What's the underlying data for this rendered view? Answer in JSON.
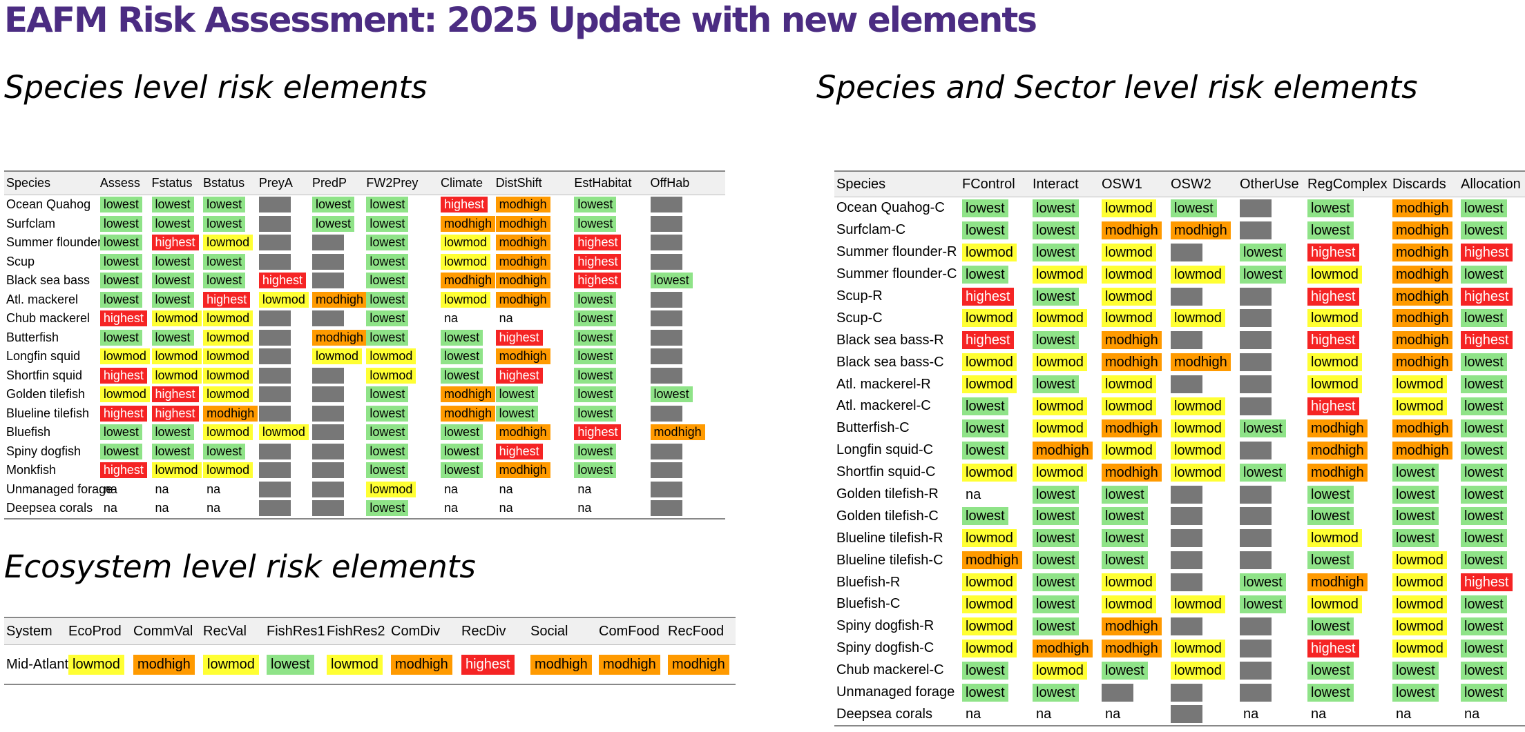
{
  "title": "EAFM Risk Assessment: 2025 Update with new elements",
  "species": {
    "heading": "Species level risk elements",
    "columns": [
      "Species",
      "Assess",
      "Fstatus",
      "Bstatus",
      "PreyA",
      "PredP",
      "FW2Prey",
      "Climate",
      "DistShift",
      "EstHabitat",
      "OffHab"
    ],
    "rows": [
      [
        "Ocean Quahog",
        "lowest",
        "lowest",
        "lowest",
        "#",
        "lowest",
        "lowest",
        "highest",
        "modhigh",
        "lowest",
        "#"
      ],
      [
        "Surfclam",
        "lowest",
        "lowest",
        "lowest",
        "#",
        "lowest",
        "lowest",
        "modhigh",
        "modhigh",
        "lowest",
        "#"
      ],
      [
        "Summer flounder",
        "lowest",
        "highest",
        "lowmod",
        "#",
        "#",
        "lowest",
        "lowmod",
        "modhigh",
        "highest",
        "#"
      ],
      [
        "Scup",
        "lowest",
        "lowest",
        "lowest",
        "#",
        "#",
        "lowest",
        "lowmod",
        "modhigh",
        "highest",
        "#"
      ],
      [
        "Black sea bass",
        "lowest",
        "lowest",
        "lowest",
        "highest",
        "#",
        "lowest",
        "modhigh",
        "modhigh",
        "highest",
        "lowest"
      ],
      [
        "Atl. mackerel",
        "lowest",
        "lowest",
        "highest",
        "lowmod",
        "modhigh",
        "lowest",
        "lowmod",
        "modhigh",
        "lowest",
        "#"
      ],
      [
        "Chub mackerel",
        "highest",
        "lowmod",
        "lowmod",
        "#",
        "#",
        "lowest",
        "na",
        "na",
        "lowest",
        "#"
      ],
      [
        "Butterfish",
        "lowest",
        "lowest",
        "lowmod",
        "#",
        "modhigh",
        "lowest",
        "lowest",
        "highest",
        "lowest",
        "#"
      ],
      [
        "Longfin squid",
        "lowmod",
        "lowmod",
        "lowmod",
        "#",
        "lowmod",
        "lowmod",
        "lowest",
        "modhigh",
        "lowest",
        "#"
      ],
      [
        "Shortfin squid",
        "highest",
        "lowmod",
        "lowmod",
        "#",
        "#",
        "lowmod",
        "lowest",
        "highest",
        "lowest",
        "#"
      ],
      [
        "Golden tilefish",
        "lowmod",
        "highest",
        "lowmod",
        "#",
        "#",
        "lowest",
        "modhigh",
        "lowest",
        "lowest",
        "lowest"
      ],
      [
        "Blueline tilefish",
        "highest",
        "highest",
        "modhigh",
        "#",
        "#",
        "lowest",
        "modhigh",
        "lowest",
        "lowest",
        "#"
      ],
      [
        "Bluefish",
        "lowest",
        "lowest",
        "lowmod",
        "lowmod",
        "#",
        "lowest",
        "lowest",
        "modhigh",
        "highest",
        "modhigh"
      ],
      [
        "Spiny dogfish",
        "lowest",
        "lowest",
        "lowest",
        "#",
        "#",
        "lowest",
        "lowest",
        "highest",
        "lowest",
        "#"
      ],
      [
        "Monkfish",
        "highest",
        "lowmod",
        "lowmod",
        "#",
        "#",
        "lowest",
        "lowest",
        "modhigh",
        "lowest",
        "#"
      ],
      [
        "Unmanaged forage",
        "na",
        "na",
        "na",
        "#",
        "#",
        "lowmod",
        "na",
        "na",
        "na",
        "#"
      ],
      [
        "Deepsea corals",
        "na",
        "na",
        "na",
        "#",
        "#",
        "lowest",
        "na",
        "na",
        "na",
        "#"
      ]
    ]
  },
  "sector": {
    "heading": "Species and Sector level risk elements",
    "columns": [
      "Species",
      "FControl",
      "Interact",
      "OSW1",
      "OSW2",
      "OtherUse",
      "RegComplex",
      "Discards",
      "Allocation"
    ],
    "rows": [
      [
        "Ocean Quahog-C",
        "lowest",
        "lowest",
        "lowmod",
        "lowest",
        "#",
        "lowest",
        "modhigh",
        "lowest"
      ],
      [
        "Surfclam-C",
        "lowest",
        "lowest",
        "modhigh",
        "modhigh",
        "#",
        "lowest",
        "modhigh",
        "lowest"
      ],
      [
        "Summer flounder-R",
        "lowmod",
        "lowest",
        "lowmod",
        "#",
        "lowest",
        "highest",
        "modhigh",
        "highest"
      ],
      [
        "Summer flounder-C",
        "lowest",
        "lowmod",
        "lowmod",
        "lowmod",
        "lowest",
        "lowmod",
        "modhigh",
        "lowest"
      ],
      [
        "Scup-R",
        "highest",
        "lowest",
        "lowmod",
        "#",
        "#",
        "highest",
        "modhigh",
        "highest"
      ],
      [
        "Scup-C",
        "lowmod",
        "lowmod",
        "lowmod",
        "lowmod",
        "#",
        "lowmod",
        "modhigh",
        "lowest"
      ],
      [
        "Black sea bass-R",
        "highest",
        "lowest",
        "modhigh",
        "#",
        "#",
        "highest",
        "modhigh",
        "highest"
      ],
      [
        "Black sea bass-C",
        "lowmod",
        "lowmod",
        "modhigh",
        "modhigh",
        "#",
        "lowmod",
        "modhigh",
        "lowest"
      ],
      [
        "Atl. mackerel-R",
        "lowmod",
        "lowest",
        "lowmod",
        "#",
        "#",
        "lowmod",
        "lowmod",
        "lowest"
      ],
      [
        "Atl. mackerel-C",
        "lowest",
        "lowmod",
        "lowmod",
        "lowmod",
        "#",
        "highest",
        "lowmod",
        "lowest"
      ],
      [
        "Butterfish-C",
        "lowest",
        "lowmod",
        "modhigh",
        "lowmod",
        "lowest",
        "modhigh",
        "modhigh",
        "lowest"
      ],
      [
        "Longfin squid-C",
        "lowest",
        "modhigh",
        "lowmod",
        "lowmod",
        "#",
        "modhigh",
        "modhigh",
        "lowest"
      ],
      [
        "Shortfin squid-C",
        "lowmod",
        "lowmod",
        "modhigh",
        "lowmod",
        "lowest",
        "modhigh",
        "lowest",
        "lowest"
      ],
      [
        "Golden tilefish-R",
        "na",
        "lowest",
        "lowest",
        "#",
        "#",
        "lowest",
        "lowest",
        "lowest"
      ],
      [
        "Golden tilefish-C",
        "lowest",
        "lowest",
        "lowest",
        "#",
        "#",
        "lowest",
        "lowest",
        "lowest"
      ],
      [
        "Blueline tilefish-R",
        "lowmod",
        "lowest",
        "lowest",
        "#",
        "#",
        "lowmod",
        "lowest",
        "lowest"
      ],
      [
        "Blueline tilefish-C",
        "modhigh",
        "lowest",
        "lowest",
        "#",
        "#",
        "lowest",
        "lowmod",
        "lowest"
      ],
      [
        "Bluefish-R",
        "lowmod",
        "lowest",
        "lowmod",
        "#",
        "lowest",
        "modhigh",
        "lowmod",
        "highest"
      ],
      [
        "Bluefish-C",
        "lowmod",
        "lowest",
        "lowmod",
        "lowmod",
        "lowest",
        "lowmod",
        "lowmod",
        "lowest"
      ],
      [
        "Spiny dogfish-R",
        "lowmod",
        "lowest",
        "modhigh",
        "#",
        "#",
        "lowest",
        "lowmod",
        "lowest"
      ],
      [
        "Spiny dogfish-C",
        "lowmod",
        "modhigh",
        "modhigh",
        "lowmod",
        "#",
        "highest",
        "lowmod",
        "lowest"
      ],
      [
        "Chub mackerel-C",
        "lowest",
        "lowmod",
        "lowest",
        "lowmod",
        "#",
        "lowest",
        "lowest",
        "lowest"
      ],
      [
        "Unmanaged forage",
        "lowest",
        "lowest",
        "#",
        "#",
        "#",
        "lowest",
        "lowest",
        "lowest"
      ],
      [
        "Deepsea corals",
        "na",
        "na",
        "na",
        "#",
        "na",
        "na",
        "na",
        "na"
      ]
    ]
  },
  "ecosystem": {
    "heading": "Ecosystem level risk elements",
    "columns": [
      "System",
      "EcoProd",
      "CommVal",
      "RecVal",
      "FishRes1",
      "FishRes2",
      "ComDiv",
      "RecDiv",
      "Social",
      "ComFood",
      "RecFood"
    ],
    "rows": [
      [
        "Mid-Atlantic",
        "lowmod",
        "modhigh",
        "lowmod",
        "lowest",
        "lowmod",
        "modhigh",
        "highest",
        "modhigh",
        "modhigh",
        "modhigh"
      ]
    ]
  },
  "colors": {
    "title": "#4b2c82",
    "lowest": "#8fe388",
    "lowmod": "#ffff33",
    "modhigh": "#ff9a00",
    "highest": "#f52424",
    "not_assessed": "#777777"
  }
}
